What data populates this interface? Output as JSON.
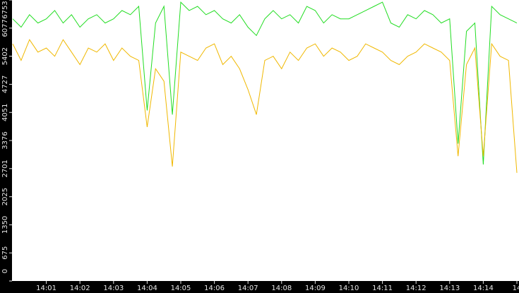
{
  "chart_data": {
    "type": "line",
    "categories": [
      null,
      null,
      null,
      null,
      "14:01",
      null,
      null,
      null,
      "14:02",
      null,
      null,
      null,
      "14:03",
      null,
      null,
      null,
      "14:04",
      null,
      null,
      null,
      "14:05",
      null,
      null,
      null,
      "14:06",
      null,
      null,
      null,
      "14:07",
      null,
      null,
      null,
      "14:08",
      null,
      null,
      null,
      "14:09",
      null,
      null,
      null,
      "14:10",
      null,
      null,
      null,
      "14:11",
      null,
      null,
      null,
      "14:12",
      null,
      null,
      null,
      "14:13",
      null,
      null,
      null,
      "14:14",
      null,
      null,
      null,
      "14"
    ],
    "series": [
      {
        "color": "#22dd22",
        "values": [
          6300,
          6100,
          6400,
          6200,
          6300,
          6500,
          6200,
          6400,
          6100,
          6300,
          6400,
          6200,
          6300,
          6500,
          6400,
          6600,
          4100,
          6200,
          6600,
          4000,
          6700,
          6500,
          6600,
          6400,
          6500,
          6300,
          6200,
          6400,
          6100,
          5900,
          6300,
          6500,
          6300,
          6400,
          6200,
          6600,
          6500,
          6200,
          6400,
          6300,
          6300,
          6400,
          6500,
          6600,
          6700,
          6200,
          6100,
          6400,
          6300,
          6500,
          6400,
          6200,
          6300,
          3300,
          6000,
          6200,
          2800,
          6600,
          6400,
          6300,
          6200
        ]
      },
      {
        "color": "#f0b800",
        "values": [
          5700,
          5300,
          5800,
          5500,
          5600,
          5400,
          5800,
          5500,
          5200,
          5600,
          5500,
          5700,
          5300,
          5600,
          5400,
          5300,
          3700,
          5100,
          4800,
          2750,
          5500,
          5400,
          5300,
          5600,
          5700,
          5200,
          5400,
          5100,
          4600,
          4000,
          5300,
          5400,
          5100,
          5500,
          5300,
          5600,
          5700,
          5400,
          5600,
          5500,
          5300,
          5400,
          5700,
          5600,
          5500,
          5300,
          5200,
          5400,
          5500,
          5700,
          5600,
          5500,
          5300,
          3000,
          5200,
          5600,
          3000,
          5700,
          5400,
          5300,
          2600
        ]
      }
    ],
    "ylim": [
      0,
      6753
    ],
    "yticks": [
      0,
      675,
      1350,
      2025,
      2701,
      3376,
      4051,
      4727,
      5402,
      6077,
      6753
    ]
  }
}
